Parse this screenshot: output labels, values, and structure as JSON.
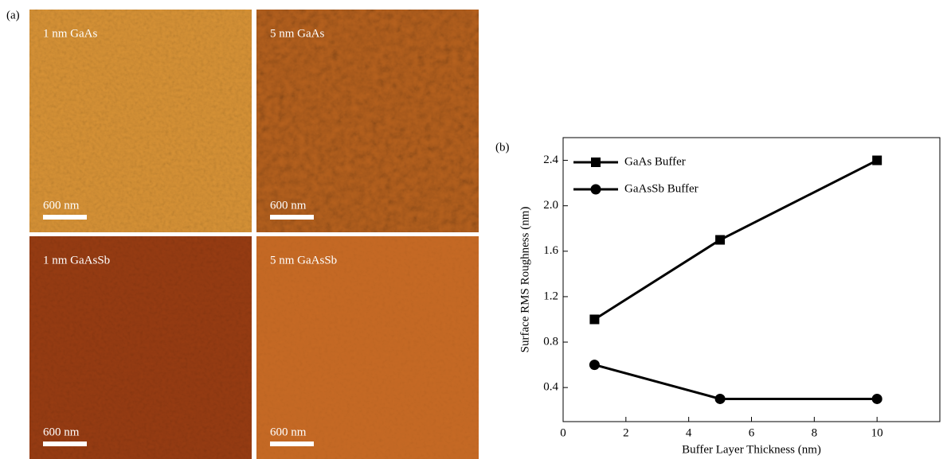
{
  "panel_a": {
    "label": "(a)",
    "images": [
      {
        "caption": "1 nm GaAs",
        "scale_bar": "600 nm"
      },
      {
        "caption": "5 nm GaAs",
        "scale_bar": "600 nm"
      },
      {
        "caption": "1 nm GaAsSb",
        "scale_bar": "600 nm"
      },
      {
        "caption": "5 nm GaAsSb",
        "scale_bar": "600 nm"
      }
    ]
  },
  "chart_data": {
    "type": "line",
    "panel_label": "(b)",
    "x_label": "Buffer Layer Thickness (nm)",
    "y_label": "Surface RMS Roughness (nm)",
    "x": [
      1,
      5,
      10
    ],
    "series": [
      {
        "name": "GaAs Buffer",
        "color": "#000000",
        "marker": "square",
        "values": [
          1.0,
          1.7,
          2.4
        ]
      },
      {
        "name": "GaAsSb Buffer",
        "color": "#000000",
        "marker": "circle",
        "values": [
          0.6,
          0.3,
          0.3
        ]
      }
    ],
    "xlim": [
      0,
      12
    ],
    "xticks": [
      0,
      2,
      4,
      6,
      8,
      10
    ],
    "ylim": [
      0.1,
      2.6
    ],
    "yticks": [
      0.4,
      0.8,
      1.2,
      1.6,
      {
        "value": 2,
        "label": "2.0"
      },
      2.4
    ],
    "legend": "upper-left",
    "grid": false
  }
}
